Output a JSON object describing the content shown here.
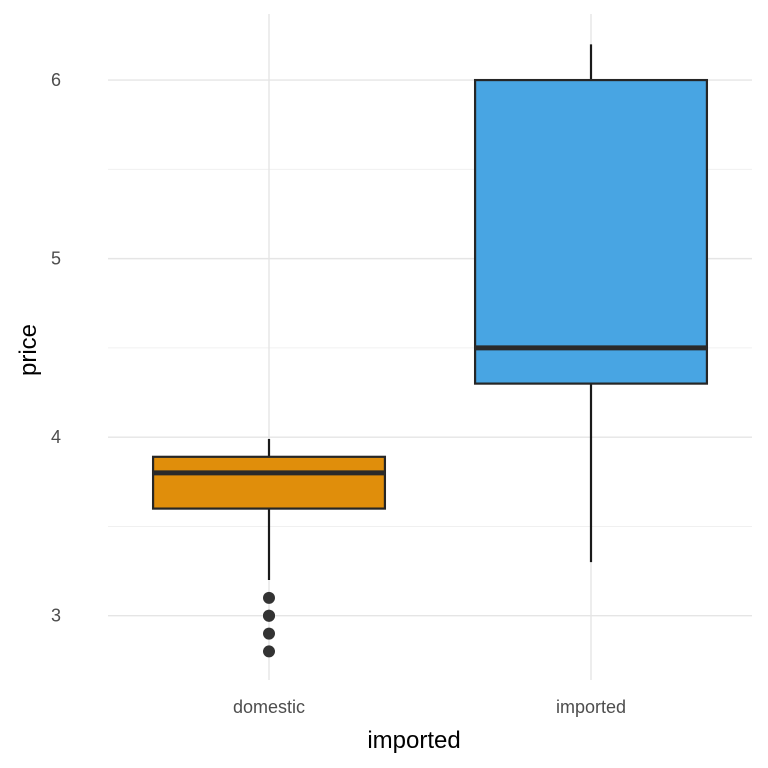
{
  "chart_data": {
    "type": "boxplot",
    "xlabel": "imported",
    "ylabel": "price",
    "categories": [
      "domestic",
      "imported"
    ],
    "ylim": [
      2.64,
      6.37
    ],
    "y_ticks": [
      3,
      4,
      5,
      6
    ],
    "y_minor_ticks": [
      3.5,
      4.5,
      5.5
    ],
    "grid": true,
    "legend": "none",
    "boxes": [
      {
        "category": "domestic",
        "color": "#E08E0B",
        "whisker_low": 3.2,
        "q1": 3.6,
        "median": 3.8,
        "q3": 3.89,
        "whisker_high": 3.99,
        "outliers": [
          2.8,
          2.9,
          3.0,
          3.0,
          3.1
        ]
      },
      {
        "category": "imported",
        "color": "#48A5E3",
        "whisker_low": 3.3,
        "q1": 4.3,
        "median": 4.5,
        "q3": 6.0,
        "whisker_high": 6.2,
        "outliers": []
      }
    ]
  }
}
